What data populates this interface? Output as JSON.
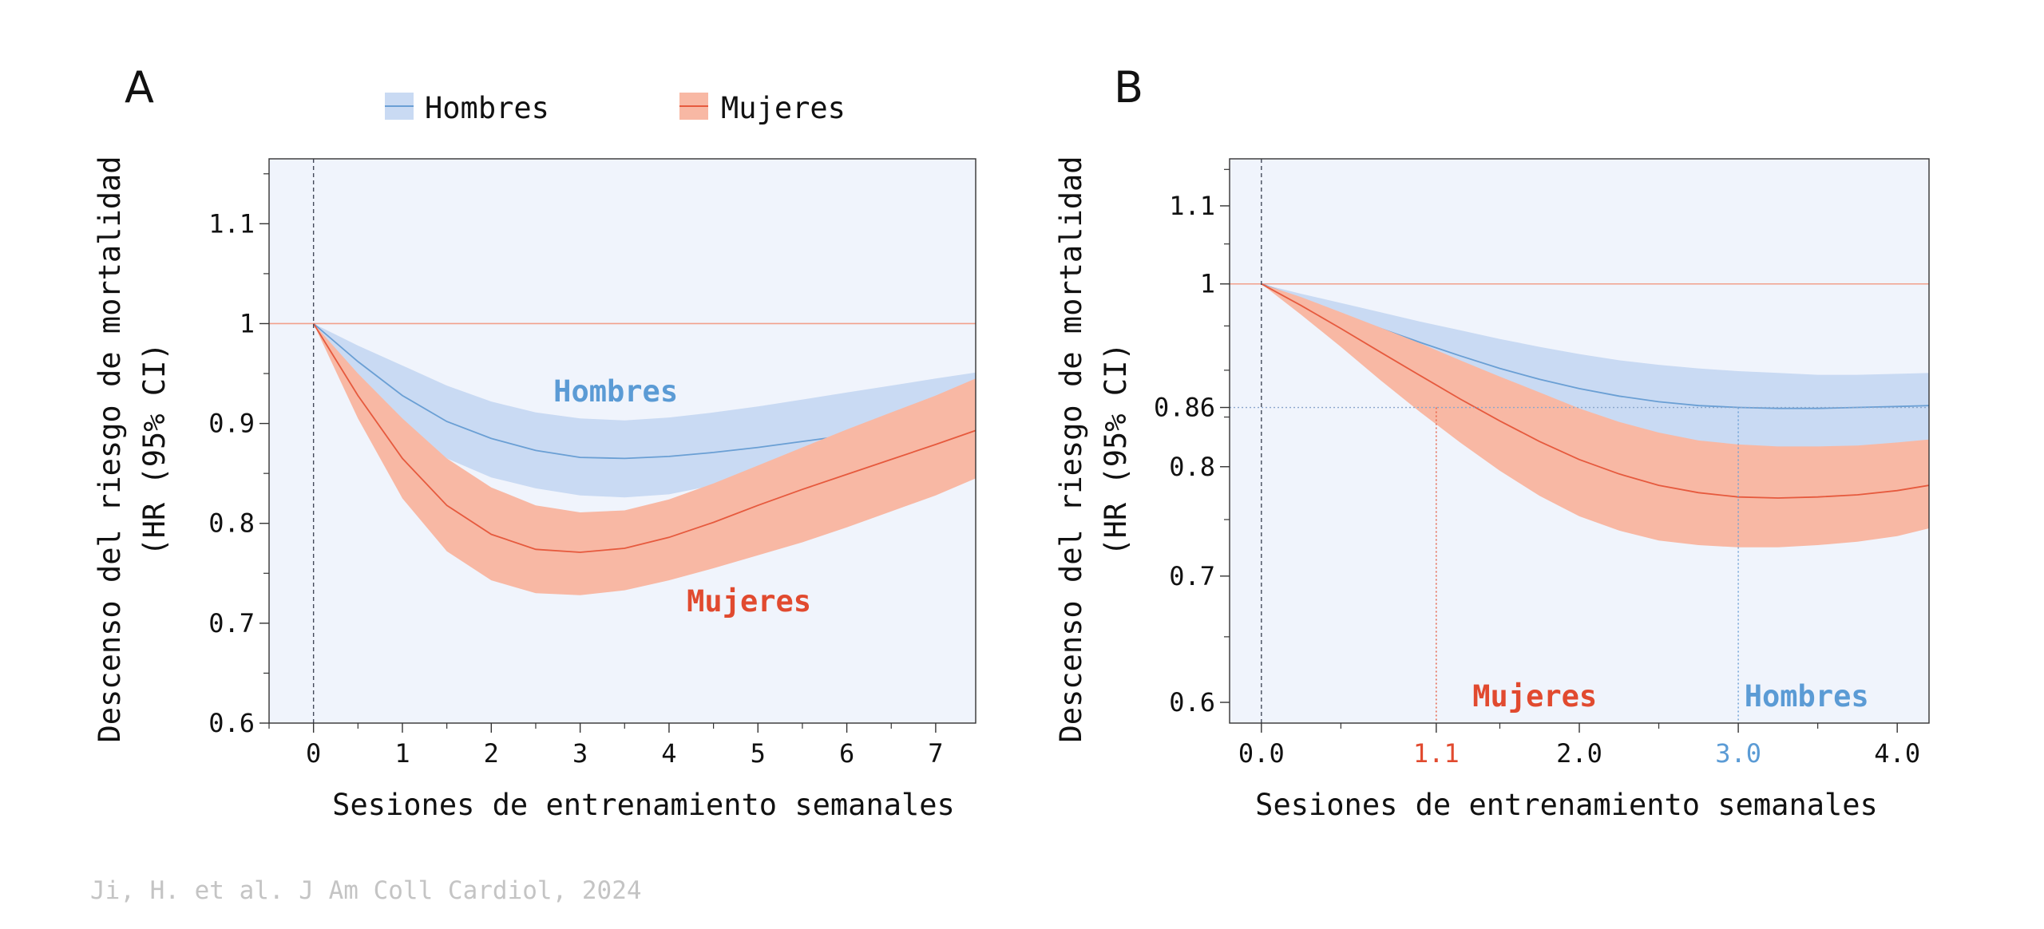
{
  "legend": {
    "items": [
      {
        "label": "Hombres",
        "color": "#6a9fd4",
        "fill": "#c9daf3"
      },
      {
        "label": "Mujeres",
        "color": "#e65a3e",
        "fill": "#f8b8a4"
      }
    ]
  },
  "citation": "Ji, H. et al. J Am Coll Cardiol, 2024",
  "colors": {
    "plot_bg": "#f0f4fc",
    "men_line": "#6a9fd4",
    "men_band": "#c9daf3",
    "women_line": "#e65a3e",
    "women_band": "#f8b8a4",
    "reference_line": "#f2a08c",
    "women_label": "#e14a2f",
    "men_label": "#5b9bd5"
  },
  "chart_data": [
    {
      "panel": "A",
      "type": "line",
      "xlabel": "Sesiones de entrenamiento semanales",
      "ylabel": [
        "Descenso del riesgo de mortalidad",
        "(HR (95% CI)"
      ],
      "xlim": [
        -0.5,
        7.45
      ],
      "ylim": [
        0.6,
        1.165
      ],
      "x_ticks": [
        0,
        1,
        2,
        3,
        4,
        5,
        6,
        7
      ],
      "x_tick_labels": [
        "0",
        "1",
        "2",
        "3",
        "4",
        "5",
        "6",
        "7"
      ],
      "y_ticks": [
        0.6,
        0.7,
        0.8,
        0.9,
        1.0,
        1.1
      ],
      "y_tick_labels": [
        "0.6",
        "0.7",
        "0.8",
        "0.9",
        "1",
        "1.1"
      ],
      "reference_hr": 1.0,
      "vline_x": 0,
      "series": [
        {
          "name": "Hombres",
          "x": [
            0,
            0.5,
            1,
            1.5,
            2,
            2.5,
            3,
            3.5,
            4,
            4.5,
            5,
            5.5,
            6,
            6.5,
            7,
            7.45
          ],
          "hr": [
            1.0,
            0.962,
            0.928,
            0.902,
            0.885,
            0.873,
            0.866,
            0.865,
            0.867,
            0.871,
            0.876,
            0.882,
            0.888,
            0.894,
            0.899,
            0.904
          ],
          "lower": [
            1.0,
            0.946,
            0.898,
            0.865,
            0.846,
            0.835,
            0.828,
            0.826,
            0.829,
            0.838,
            0.848,
            0.858,
            0.868,
            0.878,
            0.887,
            0.896
          ],
          "upper": [
            1.0,
            0.978,
            0.958,
            0.938,
            0.922,
            0.911,
            0.905,
            0.903,
            0.906,
            0.911,
            0.917,
            0.924,
            0.931,
            0.938,
            0.945,
            0.951
          ]
        },
        {
          "name": "Mujeres",
          "x": [
            0,
            0.5,
            1,
            1.5,
            2,
            2.5,
            3,
            3.5,
            4,
            4.5,
            5,
            5.5,
            6,
            6.5,
            7,
            7.45
          ],
          "hr": [
            1.0,
            0.928,
            0.865,
            0.818,
            0.789,
            0.774,
            0.771,
            0.775,
            0.786,
            0.801,
            0.818,
            0.834,
            0.849,
            0.864,
            0.879,
            0.893
          ],
          "lower": [
            1.0,
            0.905,
            0.825,
            0.772,
            0.743,
            0.73,
            0.728,
            0.733,
            0.743,
            0.755,
            0.768,
            0.781,
            0.796,
            0.812,
            0.828,
            0.845
          ],
          "upper": [
            1.0,
            0.95,
            0.905,
            0.865,
            0.836,
            0.818,
            0.811,
            0.813,
            0.824,
            0.84,
            0.858,
            0.876,
            0.894,
            0.911,
            0.928,
            0.945
          ]
        }
      ],
      "annotations": [
        {
          "text": "Hombres",
          "x": 3.4,
          "y": 0.922,
          "series": "Hombres"
        },
        {
          "text": "Mujeres",
          "x": 4.9,
          "y": 0.712,
          "series": "Mujeres"
        }
      ]
    },
    {
      "panel": "B",
      "type": "line",
      "xlabel": "Sesiones de entrenamiento semanales",
      "ylabel": [
        "Descenso del riesgo de mortalidad",
        "(HR (95% CI)"
      ],
      "xlim": [
        -0.2,
        4.2
      ],
      "ylim": [
        0.585,
        1.165
      ],
      "x_ticks": [
        0.0,
        1.1,
        2.0,
        3.0,
        4.0
      ],
      "x_tick_labels": [
        "0.0",
        "1.1",
        "2.0",
        "3.0",
        "4.0"
      ],
      "y_ticks": [
        0.6,
        0.7,
        0.8,
        0.86,
        1.0,
        1.1
      ],
      "y_tick_labels": [
        "0.6",
        "0.7",
        "0.8",
        "0.86",
        "1",
        "1.1"
      ],
      "reference_hr": 1.0,
      "vline_x": 0,
      "highlight_hr": 0.86,
      "highlight_x": [
        1.1,
        3.0
      ],
      "series": [
        {
          "name": "Hombres",
          "x": [
            0,
            0.25,
            0.5,
            0.75,
            1,
            1.25,
            1.5,
            1.75,
            2,
            2.25,
            2.5,
            2.75,
            3,
            3.25,
            3.5,
            3.75,
            4,
            4.2
          ],
          "hr": [
            1.0,
            0.982,
            0.964,
            0.947,
            0.931,
            0.916,
            0.902,
            0.89,
            0.88,
            0.872,
            0.866,
            0.862,
            0.86,
            0.859,
            0.859,
            0.86,
            0.861,
            0.862
          ],
          "lower": [
            1.0,
            0.975,
            0.95,
            0.927,
            0.906,
            0.887,
            0.87,
            0.855,
            0.843,
            0.834,
            0.827,
            0.822,
            0.82,
            0.819,
            0.819,
            0.82,
            0.822,
            0.824
          ],
          "upper": [
            1.0,
            0.988,
            0.977,
            0.966,
            0.955,
            0.945,
            0.935,
            0.926,
            0.918,
            0.911,
            0.906,
            0.902,
            0.899,
            0.897,
            0.895,
            0.895,
            0.896,
            0.897
          ]
        },
        {
          "name": "Mujeres",
          "x": [
            0,
            0.25,
            0.5,
            0.75,
            1,
            1.25,
            1.5,
            1.75,
            2,
            2.25,
            2.5,
            2.75,
            3,
            3.25,
            3.5,
            3.75,
            4,
            4.2
          ],
          "hr": [
            1.0,
            0.974,
            0.947,
            0.92,
            0.894,
            0.869,
            0.846,
            0.825,
            0.807,
            0.793,
            0.782,
            0.775,
            0.771,
            0.77,
            0.771,
            0.773,
            0.777,
            0.782
          ],
          "lower": [
            1.0,
            0.963,
            0.926,
            0.889,
            0.855,
            0.824,
            0.796,
            0.772,
            0.753,
            0.74,
            0.731,
            0.727,
            0.725,
            0.725,
            0.727,
            0.73,
            0.735,
            0.742
          ],
          "upper": [
            1.0,
            0.984,
            0.966,
            0.948,
            0.93,
            0.911,
            0.893,
            0.876,
            0.859,
            0.845,
            0.834,
            0.826,
            0.822,
            0.82,
            0.82,
            0.821,
            0.824,
            0.827
          ]
        }
      ],
      "annotations": [
        {
          "text": "Mujeres",
          "x": 1.72,
          "y": 0.597,
          "series": "Mujeres"
        },
        {
          "text": "Hombres",
          "x": 3.43,
          "y": 0.597,
          "series": "Hombres"
        }
      ]
    }
  ]
}
